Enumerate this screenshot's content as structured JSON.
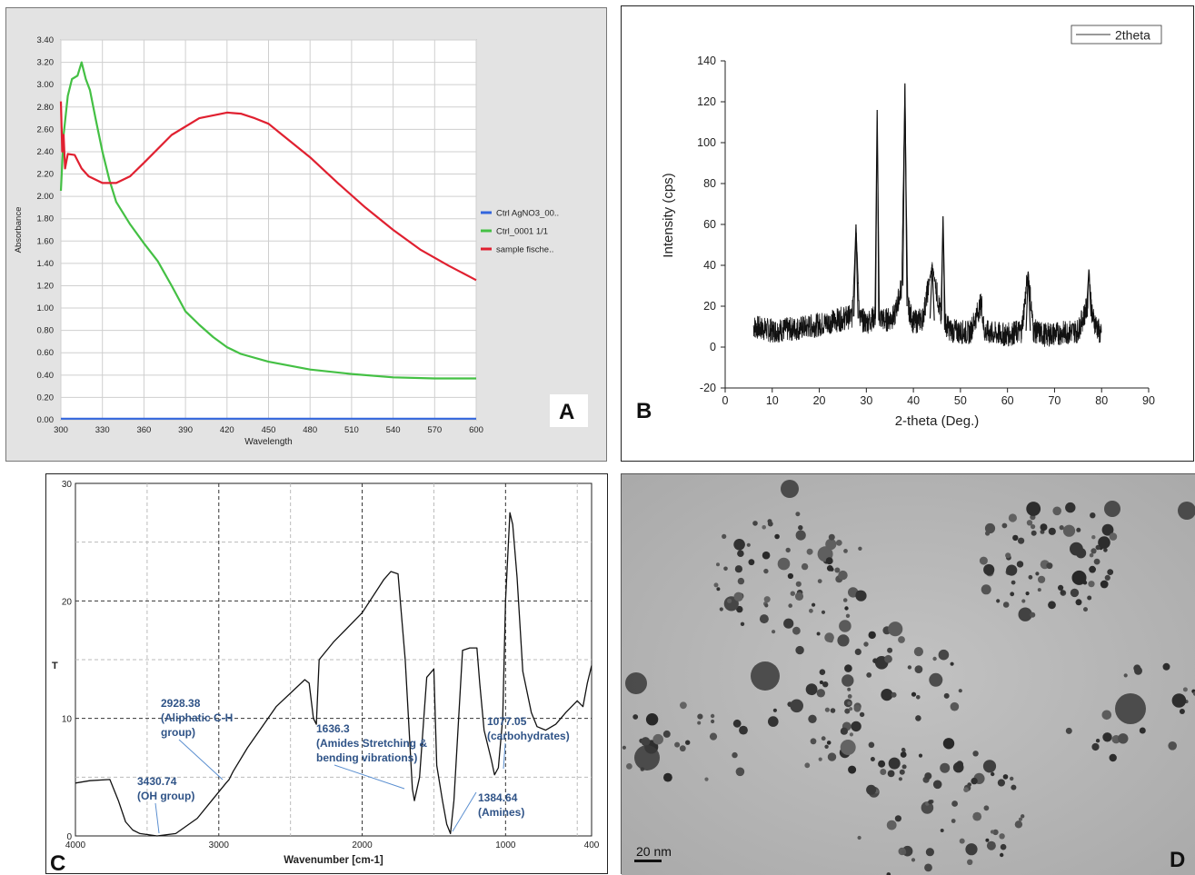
{
  "chart_data": [
    {
      "panel_label": "A",
      "type": "line",
      "xlabel": "Wavelength",
      "ylabel": "Absorbance",
      "xlim": [
        300,
        600
      ],
      "ylim": [
        0,
        3.4
      ],
      "x_ticks": [
        300,
        330,
        360,
        390,
        420,
        450,
        480,
        510,
        540,
        570,
        600
      ],
      "y_ticks": [
        "0.00",
        "0.20",
        "0.40",
        "0.60",
        "0.80",
        "1.00",
        "1.20",
        "1.40",
        "1.60",
        "1.80",
        "2.00",
        "2.20",
        "2.40",
        "2.60",
        "2.80",
        "3.00",
        "3.20",
        "3.40"
      ],
      "grid": true,
      "legend_position": "right",
      "series": [
        {
          "name": "Ctrl AgNO3_00..",
          "color": "#3366dd",
          "x": [
            300,
            600
          ],
          "y": [
            0.01,
            0.01
          ]
        },
        {
          "name": "Ctrl_0001 1/1",
          "color": "#44c044",
          "x": [
            300,
            302,
            305,
            308,
            312,
            315,
            318,
            321,
            325,
            330,
            335,
            340,
            350,
            360,
            370,
            380,
            390,
            400,
            410,
            420,
            430,
            450,
            480,
            510,
            540,
            570,
            600
          ],
          "y": [
            2.05,
            2.55,
            2.9,
            3.05,
            3.08,
            3.2,
            3.05,
            2.95,
            2.7,
            2.4,
            2.15,
            1.95,
            1.75,
            1.58,
            1.42,
            1.2,
            0.97,
            0.85,
            0.74,
            0.65,
            0.59,
            0.52,
            0.45,
            0.41,
            0.38,
            0.37,
            0.37
          ]
        },
        {
          "name": "sample fische..",
          "color": "#e02030",
          "x": [
            300,
            301,
            302,
            303,
            305,
            310,
            315,
            320,
            330,
            340,
            350,
            360,
            380,
            400,
            420,
            430,
            440,
            450,
            460,
            480,
            500,
            520,
            540,
            560,
            580,
            600
          ],
          "y": [
            2.85,
            2.4,
            2.55,
            2.25,
            2.38,
            2.37,
            2.25,
            2.18,
            2.12,
            2.12,
            2.18,
            2.3,
            2.55,
            2.7,
            2.75,
            2.74,
            2.7,
            2.65,
            2.55,
            2.35,
            2.12,
            1.9,
            1.7,
            1.52,
            1.38,
            1.25
          ]
        }
      ]
    },
    {
      "panel_label": "B",
      "type": "line",
      "xlabel": "2-theta (Deg.)",
      "ylabel": "Intensity (cps)",
      "xlim": [
        0,
        90
      ],
      "ylim": [
        -20,
        140
      ],
      "x_ticks": [
        0,
        10,
        20,
        30,
        40,
        50,
        60,
        70,
        80,
        90
      ],
      "y_ticks": [
        -20,
        0,
        20,
        40,
        60,
        80,
        100,
        120,
        140
      ],
      "legend_position": "top-right",
      "series": [
        {
          "name": "2theta",
          "color": "#111111",
          "x": [
            6,
            10,
            15,
            20,
            25,
            27,
            27.8,
            28.6,
            30,
            32,
            32.3,
            32.6,
            34,
            36,
            37.5,
            38.2,
            38.8,
            40,
            42,
            44,
            46,
            46.3,
            46.6,
            48,
            52,
            54.5,
            55,
            56,
            60,
            63,
            64.4,
            65.5,
            68,
            72,
            75,
            77,
            77.3,
            78,
            80
          ],
          "y": [
            10,
            8,
            9,
            11,
            14,
            15,
            60,
            14,
            12,
            15,
            116,
            15,
            13,
            15,
            30,
            129,
            20,
            12,
            14,
            40,
            13,
            64,
            12,
            8,
            7,
            22,
            8,
            7,
            6,
            8,
            37,
            8,
            6,
            7,
            8,
            20,
            38,
            15,
            5
          ]
        }
      ]
    },
    {
      "panel_label": "C",
      "type": "line",
      "xlabel": "Wavenumber [cm-1]",
      "ylabel": "T",
      "xlim": [
        4000,
        400
      ],
      "ylim": [
        0,
        30
      ],
      "x_ticks": [
        4000,
        3000,
        2000,
        1000,
        400
      ],
      "y_ticks": [
        0,
        10,
        20,
        30
      ],
      "grid": true,
      "series": [
        {
          "name": "",
          "color": "#111111",
          "x": [
            4000,
            3900,
            3760,
            3700,
            3650,
            3600,
            3550,
            3430,
            3300,
            3150,
            3050,
            2950,
            2928,
            2900,
            2800,
            2600,
            2400,
            2370,
            2340,
            2320,
            2300,
            2200,
            2000,
            1850,
            1800,
            1750,
            1700,
            1650,
            1636,
            1600,
            1550,
            1500,
            1480,
            1440,
            1410,
            1384,
            1360,
            1300,
            1250,
            1200,
            1180,
            1150,
            1100,
            1077,
            1050,
            1020,
            1000,
            970,
            950,
            920,
            880,
            820,
            780,
            720,
            650,
            580,
            500,
            460,
            430,
            400
          ],
          "y": [
            4.5,
            4.7,
            4.8,
            3,
            1.2,
            0.5,
            0.2,
            0,
            0.2,
            1.5,
            3,
            4.5,
            4.8,
            5.5,
            7.5,
            11,
            13.3,
            13,
            10,
            9.5,
            15,
            16.5,
            19,
            21.8,
            22.5,
            22.3,
            15,
            4,
            3,
            5,
            13.5,
            14.2,
            6,
            3,
            1,
            0.2,
            3,
            15.8,
            16,
            16,
            13,
            9,
            6.5,
            5.2,
            5.8,
            10,
            20,
            27.5,
            26.5,
            22,
            14,
            10.5,
            9.3,
            9,
            9.5,
            10.5,
            11.5,
            11,
            13,
            14.5
          ]
        }
      ],
      "annotations": [
        {
          "text": "3430.74",
          "sub": "(OH group)",
          "x": 3430.74
        },
        {
          "text": "2928.38",
          "sub": "(Aliphatic C-H",
          "sub2": "group)",
          "x": 2928.38
        },
        {
          "text": "1636.3",
          "sub": "(Amides Stretching &",
          "sub2": "bending vibrations)",
          "x": 1636.3
        },
        {
          "text": "1384.64",
          "sub": "(Amines)",
          "x": 1384.64
        },
        {
          "text": "1077.05",
          "sub": "(carbohydrates)",
          "x": 1077.05
        }
      ]
    }
  ],
  "panel_d": {
    "panel_label": "D",
    "scale_bar": "20 nm"
  },
  "panel_labels": [
    "A",
    "B",
    "C",
    "D"
  ]
}
